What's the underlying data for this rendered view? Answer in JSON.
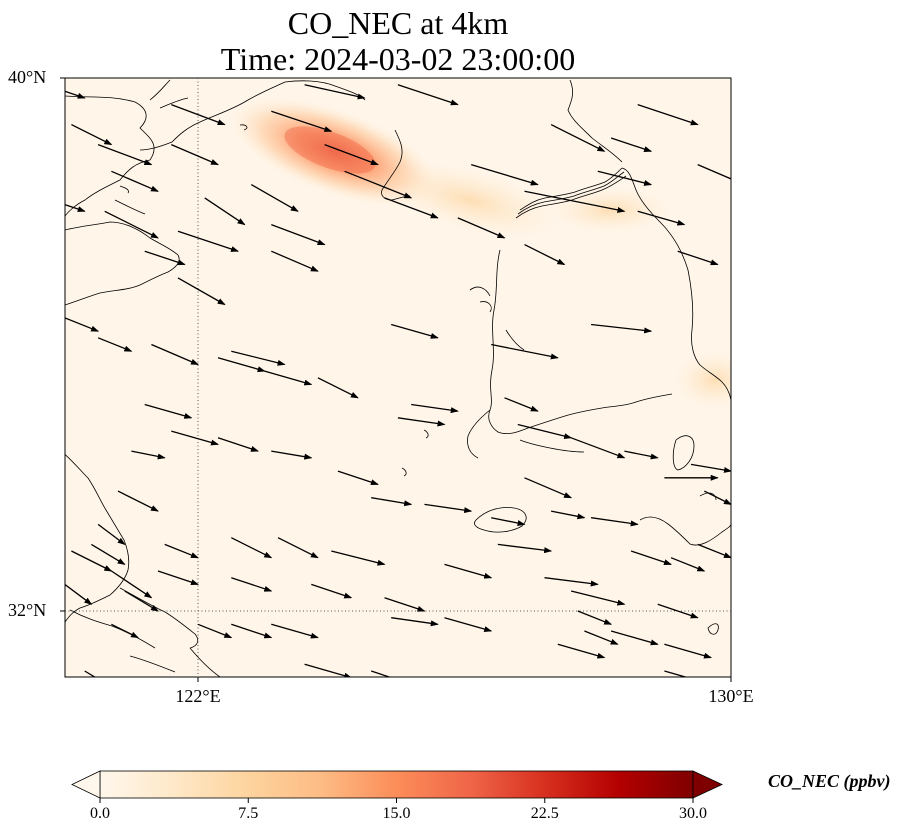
{
  "title_line1": "CO_NEC at 4km",
  "title_line2": "Time: 2024-03-02 23:00:00",
  "lat_ticks": [
    "40°N",
    "32°N"
  ],
  "lon_ticks": [
    "122°E",
    "130°E"
  ],
  "map": {
    "lon_range": [
      120,
      130
    ],
    "lat_range": [
      31,
      40
    ],
    "gridlines": {
      "lon": 122,
      "lat": 32,
      "style": "dotted"
    }
  },
  "colorbar": {
    "label": "CO_NEC (ppbv)",
    "ticks": [
      "0.0",
      "7.5",
      "15.0",
      "22.5",
      "30.0"
    ],
    "tick_values": [
      0,
      7.5,
      15,
      22.5,
      30
    ],
    "range": [
      0,
      30
    ],
    "colormap": "OrRd",
    "extend": "both",
    "colors": [
      "#fff7ec",
      "#fee8c8",
      "#fdd49e",
      "#fdbb84",
      "#fc8d59",
      "#ef6548",
      "#d7301f",
      "#b30000",
      "#7f0000"
    ]
  },
  "wind_arrows": [
    [
      120.0,
      39.8,
      120.3,
      39.7
    ],
    [
      120.1,
      39.3,
      120.7,
      39.0
    ],
    [
      120.5,
      39.0,
      121.3,
      38.7
    ],
    [
      120.7,
      38.6,
      121.4,
      38.3
    ],
    [
      120.0,
      38.1,
      120.3,
      38.0
    ],
    [
      120.6,
      38.0,
      121.4,
      37.6
    ],
    [
      121.2,
      37.4,
      121.8,
      37.2
    ],
    [
      121.7,
      37.0,
      122.4,
      36.6
    ],
    [
      121.6,
      39.6,
      122.4,
      39.3
    ],
    [
      121.6,
      39.0,
      122.3,
      38.7
    ],
    [
      122.1,
      38.2,
      122.7,
      37.8
    ],
    [
      121.7,
      37.7,
      122.6,
      37.4
    ],
    [
      123.1,
      39.5,
      124.0,
      39.2
    ],
    [
      122.8,
      38.4,
      123.5,
      38.0
    ],
    [
      123.1,
      37.8,
      123.9,
      37.5
    ],
    [
      123.1,
      37.4,
      123.8,
      37.1
    ],
    [
      123.6,
      39.9,
      124.5,
      39.7
    ],
    [
      123.9,
      39.0,
      124.7,
      38.7
    ],
    [
      124.2,
      38.6,
      125.2,
      38.2
    ],
    [
      124.8,
      38.2,
      125.6,
      37.9
    ],
    [
      125.0,
      39.9,
      125.9,
      39.6
    ],
    [
      126.1,
      38.7,
      127.1,
      38.4
    ],
    [
      125.9,
      37.9,
      126.6,
      37.6
    ],
    [
      126.9,
      38.3,
      128.4,
      38.0
    ],
    [
      127.3,
      39.3,
      128.1,
      38.9
    ],
    [
      128.2,
      39.1,
      128.8,
      38.9
    ],
    [
      128.6,
      39.6,
      129.5,
      39.3
    ],
    [
      128.0,
      38.6,
      128.8,
      38.4
    ],
    [
      128.6,
      38.0,
      129.3,
      37.8
    ],
    [
      129.2,
      37.4,
      129.8,
      37.2
    ],
    [
      129.5,
      38.7,
      130.2,
      38.4
    ],
    [
      126.9,
      37.5,
      127.5,
      37.2
    ],
    [
      120.0,
      36.4,
      120.5,
      36.2
    ],
    [
      120.5,
      36.1,
      121.0,
      35.9
    ],
    [
      121.3,
      36.0,
      122.0,
      35.7
    ],
    [
      122.3,
      35.8,
      123.0,
      35.6
    ],
    [
      123.0,
      35.6,
      123.7,
      35.4
    ],
    [
      123.8,
      35.5,
      124.4,
      35.2
    ],
    [
      122.5,
      35.9,
      123.3,
      35.7
    ],
    [
      125.2,
      35.1,
      125.9,
      35.0
    ],
    [
      126.6,
      35.2,
      127.1,
      35.0
    ],
    [
      124.9,
      36.3,
      125.6,
      36.1
    ],
    [
      126.4,
      36.0,
      127.4,
      35.8
    ],
    [
      127.9,
      36.3,
      128.8,
      36.2
    ],
    [
      126.8,
      34.8,
      127.6,
      34.6
    ],
    [
      127.6,
      34.6,
      128.4,
      34.3
    ],
    [
      128.4,
      34.4,
      128.9,
      34.3
    ],
    [
      129.4,
      34.2,
      130.0,
      34.1
    ],
    [
      121.2,
      35.1,
      121.9,
      34.9
    ],
    [
      121.6,
      34.7,
      122.3,
      34.5
    ],
    [
      122.3,
      34.6,
      122.9,
      34.4
    ],
    [
      123.1,
      34.4,
      123.7,
      34.3
    ],
    [
      124.1,
      34.1,
      124.7,
      33.9
    ],
    [
      124.6,
      33.7,
      125.2,
      33.6
    ],
    [
      125.4,
      33.6,
      126.1,
      33.5
    ],
    [
      126.4,
      33.4,
      126.9,
      33.3
    ],
    [
      127.3,
      33.5,
      127.8,
      33.4
    ],
    [
      126.5,
      33.0,
      127.3,
      32.9
    ],
    [
      127.2,
      32.5,
      128.0,
      32.4
    ],
    [
      127.7,
      32.0,
      128.2,
      31.8
    ],
    [
      121.0,
      34.4,
      121.5,
      34.3
    ],
    [
      120.8,
      33.8,
      121.4,
      33.5
    ],
    [
      120.5,
      33.3,
      120.9,
      33.0
    ],
    [
      120.4,
      33.0,
      120.9,
      32.7
    ],
    [
      120.1,
      32.9,
      120.7,
      32.6
    ],
    [
      120.0,
      32.4,
      120.4,
      32.1
    ],
    [
      120.7,
      32.6,
      121.3,
      32.2
    ],
    [
      121.4,
      32.6,
      122.0,
      32.4
    ],
    [
      121.5,
      33.0,
      122.0,
      32.8
    ],
    [
      122.5,
      33.1,
      123.1,
      32.8
    ],
    [
      123.2,
      33.1,
      123.8,
      32.8
    ],
    [
      124.0,
      32.9,
      124.8,
      32.7
    ],
    [
      122.5,
      32.5,
      123.1,
      32.3
    ],
    [
      123.7,
      32.4,
      124.3,
      32.2
    ],
    [
      124.8,
      32.2,
      125.4,
      32.0
    ],
    [
      125.7,
      31.9,
      126.4,
      31.7
    ],
    [
      127.6,
      32.3,
      128.4,
      32.1
    ],
    [
      127.8,
      31.7,
      128.3,
      31.5
    ],
    [
      129.0,
      31.5,
      129.7,
      31.3
    ],
    [
      128.9,
      32.1,
      129.5,
      31.9
    ],
    [
      126.9,
      34.0,
      127.6,
      33.7
    ],
    [
      127.9,
      33.4,
      128.6,
      33.3
    ],
    [
      128.5,
      32.9,
      129.1,
      32.7
    ],
    [
      129.1,
      32.8,
      129.6,
      32.6
    ],
    [
      129.5,
      33.0,
      130.0,
      32.8
    ],
    [
      120.9,
      32.3,
      121.4,
      32.0
    ],
    [
      120.7,
      31.8,
      121.1,
      31.6
    ],
    [
      122.0,
      31.8,
      122.5,
      31.6
    ],
    [
      122.5,
      31.8,
      123.1,
      31.6
    ],
    [
      123.1,
      31.8,
      123.8,
      31.6
    ],
    [
      123.6,
      31.2,
      124.3,
      31.0
    ],
    [
      124.6,
      31.1,
      125.2,
      30.9
    ],
    [
      124.9,
      31.9,
      125.6,
      31.8
    ],
    [
      127.4,
      31.5,
      128.1,
      31.3
    ],
    [
      128.2,
      31.7,
      128.9,
      31.5
    ],
    [
      129.0,
      31.1,
      129.7,
      30.9
    ],
    [
      125.7,
      32.7,
      126.4,
      32.5
    ],
    [
      121.8,
      30.8,
      122.4,
      30.5
    ],
    [
      120.3,
      31.1,
      120.8,
      30.8
    ],
    [
      125.0,
      34.9,
      125.7,
      34.8
    ],
    [
      129.0,
      34.0,
      129.8,
      34.0
    ],
    [
      129.6,
      33.8,
      130.0,
      33.6
    ]
  ]
}
